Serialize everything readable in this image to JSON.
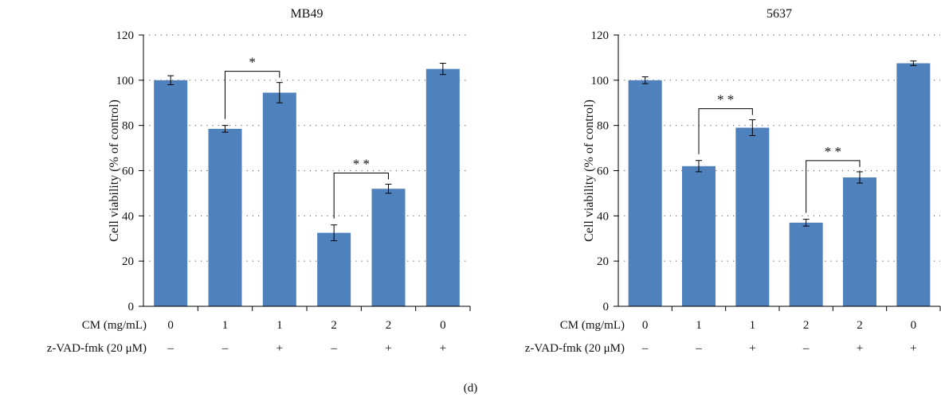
{
  "figure": {
    "caption": "(d)"
  },
  "chart_data": [
    {
      "type": "bar",
      "title": "MB49",
      "ylabel": "Cell viability (% of control)",
      "ylim": [
        0,
        120
      ],
      "yticks": [
        0,
        20,
        40,
        60,
        80,
        100,
        120
      ],
      "grid": "horizontal dotted",
      "bar_color": "#4f81bd",
      "row_labels": [
        "CM (mg/mL)",
        "z-VAD-fmk (20 μM)"
      ],
      "rows": [
        [
          "0",
          "1",
          "1",
          "2",
          "2",
          "0"
        ],
        [
          "–",
          "–",
          "+",
          "–",
          "+",
          "+"
        ]
      ],
      "values": [
        100,
        78.5,
        94.5,
        32.5,
        52,
        105
      ],
      "errors": [
        2,
        1.5,
        4.5,
        3.5,
        2,
        2.5
      ],
      "significance": [
        {
          "from": 1,
          "to": 2,
          "label": "*"
        },
        {
          "from": 3,
          "to": 4,
          "label": "**"
        }
      ]
    },
    {
      "type": "bar",
      "title": "5637",
      "ylabel": "Cell viability (% of control)",
      "ylim": [
        0,
        120
      ],
      "yticks": [
        0,
        20,
        40,
        60,
        80,
        100,
        120
      ],
      "grid": "horizontal dotted",
      "bar_color": "#4f81bd",
      "row_labels": [
        "CM (mg/mL)",
        "z-VAD-fmk (20 μM)"
      ],
      "rows": [
        [
          "0",
          "1",
          "1",
          "2",
          "2",
          "0"
        ],
        [
          "–",
          "–",
          "+",
          "–",
          "+",
          "+"
        ]
      ],
      "values": [
        100,
        62,
        79,
        37,
        57,
        107.5
      ],
      "errors": [
        1.5,
        2.5,
        3.5,
        1.5,
        2.5,
        1
      ],
      "significance": [
        {
          "from": 1,
          "to": 2,
          "label": "**"
        },
        {
          "from": 3,
          "to": 4,
          "label": "**"
        }
      ]
    }
  ]
}
